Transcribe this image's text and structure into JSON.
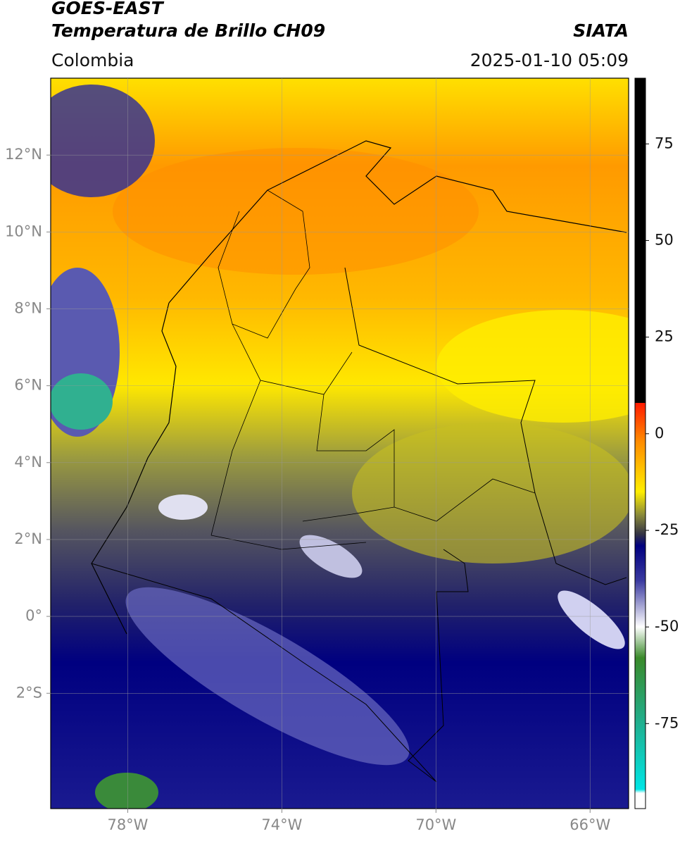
{
  "map": {
    "title": "GOES-EAST",
    "subtitle": "Temperatura de Brillo CH09",
    "brand": "SIATA",
    "region": "Colombia",
    "timestamp": "2025-01-10 05:09",
    "xlim": [
      -80,
      -65
    ],
    "ylim": [
      -5,
      14
    ],
    "xticks": [
      {
        "value": -78,
        "label": "78°W"
      },
      {
        "value": -74,
        "label": "74°W"
      },
      {
        "value": -70,
        "label": "70°W"
      },
      {
        "value": -66,
        "label": "66°W"
      }
    ],
    "yticks": [
      {
        "value": 12,
        "label": "12°N"
      },
      {
        "value": 10,
        "label": "10°N"
      },
      {
        "value": 8,
        "label": "8°N"
      },
      {
        "value": 6,
        "label": "6°N"
      },
      {
        "value": 4,
        "label": "4°N"
      },
      {
        "value": 2,
        "label": "2°N"
      },
      {
        "value": 0,
        "label": "0°"
      },
      {
        "value": -2,
        "label": "2°S"
      }
    ],
    "grid": true,
    "colorbar": {
      "lim": [
        -97,
        92
      ],
      "ticks": [
        75,
        50,
        25,
        0,
        -25,
        -50,
        -75
      ],
      "stops": [
        {
          "value": 92,
          "color": "#000000"
        },
        {
          "value": 8,
          "color": "#000000"
        },
        {
          "value": 8,
          "color": "#ff1a00"
        },
        {
          "value": -2,
          "color": "#ff8c00"
        },
        {
          "value": -15,
          "color": "#ffee00"
        },
        {
          "value": -21,
          "color": "#8a8a3a"
        },
        {
          "value": -26,
          "color": "#333344"
        },
        {
          "value": -29,
          "color": "#000080"
        },
        {
          "value": -38,
          "color": "#3a3aa0"
        },
        {
          "value": -50,
          "color": "#ffffff"
        },
        {
          "value": -58,
          "color": "#3a8a2a"
        },
        {
          "value": -75,
          "color": "#20b090"
        },
        {
          "value": -92,
          "color": "#00e5e5"
        },
        {
          "value": -93,
          "color": "#ffffff"
        },
        {
          "value": -97,
          "color": "#ffffff"
        }
      ]
    }
  }
}
